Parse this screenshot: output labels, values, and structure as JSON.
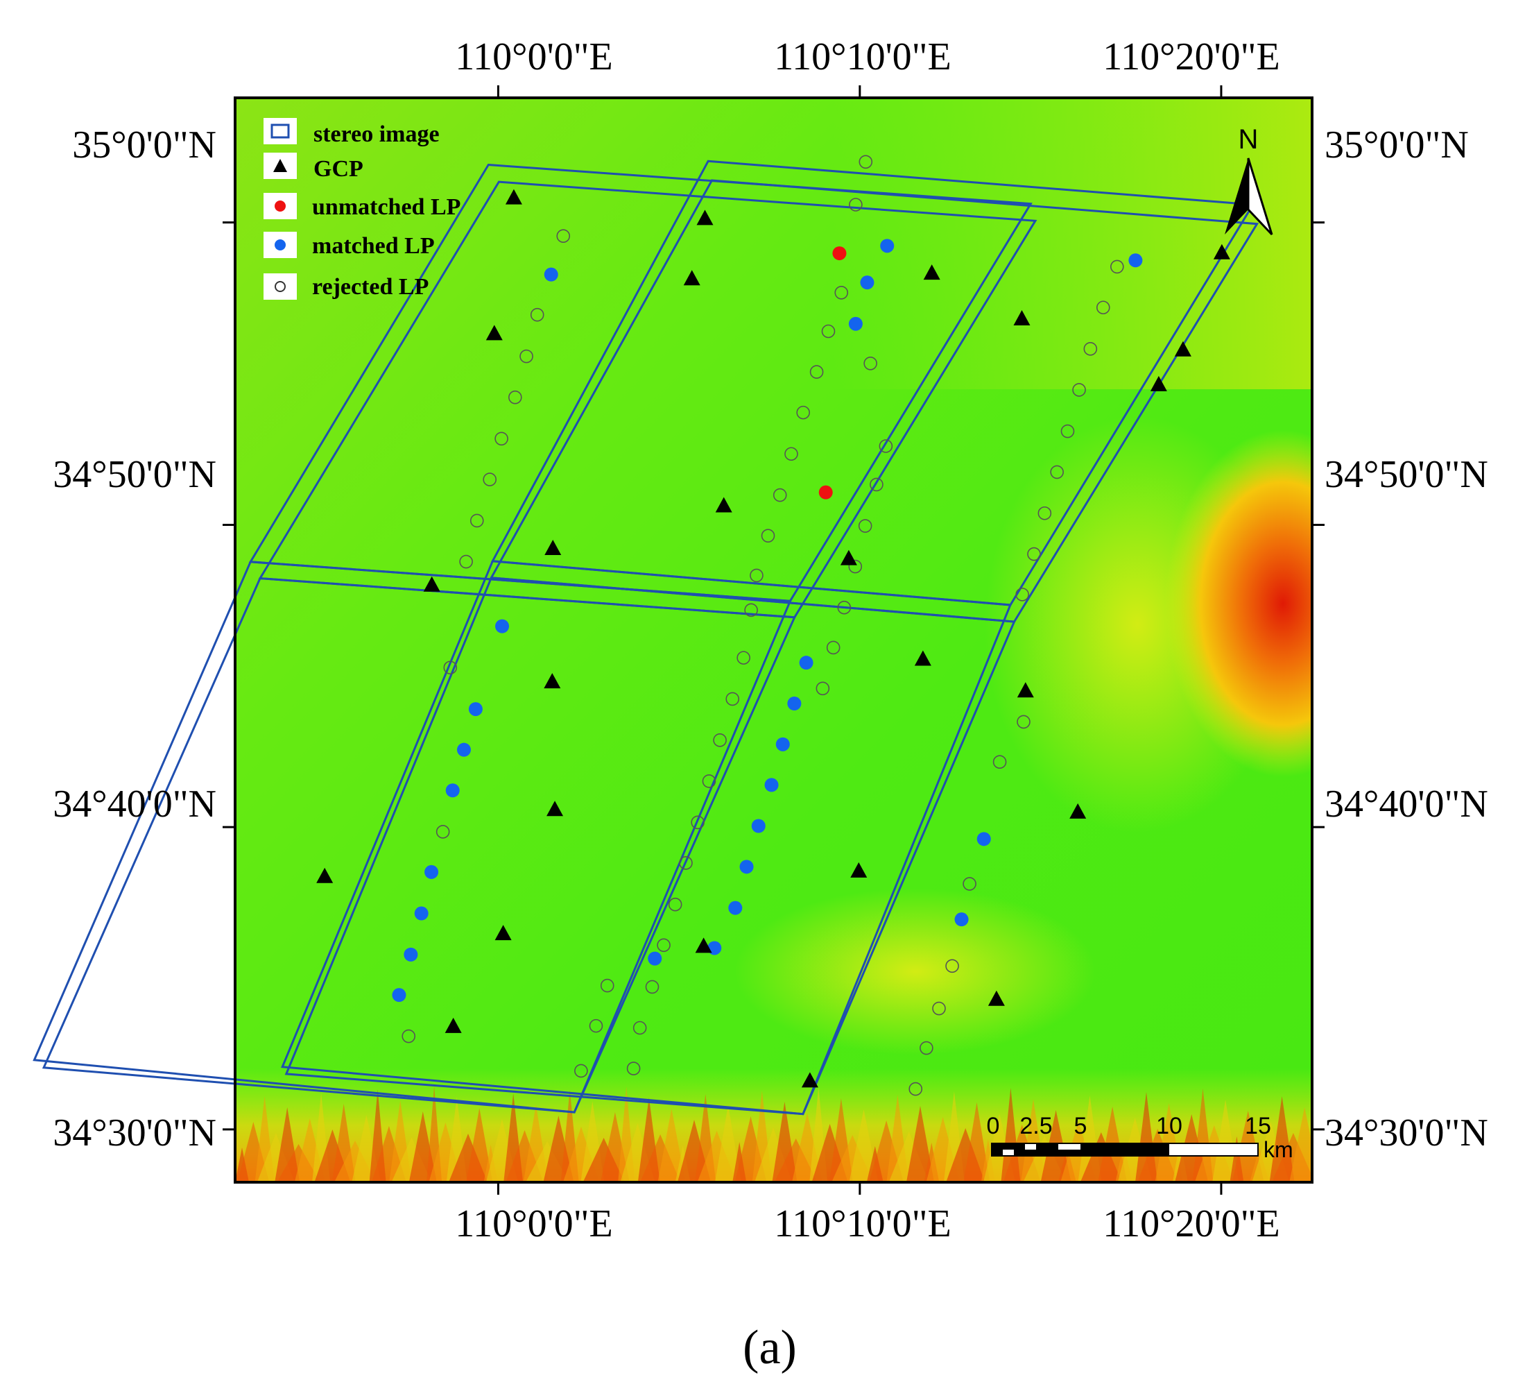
{
  "map": {
    "extent": {
      "lon_min": 109.8787,
      "lon_max": 110.3752,
      "lat_min": 34.4709,
      "lat_max": 35.0687
    },
    "top_lon_labels": [
      "110°0'0\"E",
      "110°10'0\"E",
      "110°20'0\"E"
    ],
    "bottom_lon_labels": [
      "110°0'0\"E",
      "110°10'0\"E",
      "110°20'0\"E"
    ],
    "left_lat_labels": [
      "35°0'0\"N",
      "34°50'0\"N",
      "34°40'0\"N",
      "34°30'0\"N"
    ],
    "right_lat_labels": [
      "35°0'0\"N",
      "34°50'0\"N",
      "34°40'0\"N",
      "34°30'0\"N"
    ],
    "lon_ticks": [
      110.0,
      110.1667,
      110.3333
    ],
    "lat_ticks": [
      35.0,
      34.8333,
      34.6667,
      34.5
    ],
    "colors": {
      "stereo_image": "#1f4fb0",
      "gcp": "#000000",
      "unmatched_lp": "#ee1111",
      "matched_lp": "#1464ee",
      "rejected_lp": "#555555",
      "dem_low": "#44ee11",
      "dem_high": "#dd1100"
    }
  },
  "legend": {
    "items": [
      {
        "label": "stereo image",
        "symbol": "rect"
      },
      {
        "label": "GCP",
        "symbol": "triangle"
      },
      {
        "label": "unmatched LP",
        "symbol": "dot-red"
      },
      {
        "label": "matched LP",
        "symbol": "dot-blue"
      },
      {
        "label": "rejected LP",
        "symbol": "circle-open"
      }
    ]
  },
  "north_arrow": {
    "label": "N"
  },
  "scale_bar": {
    "ticks": [
      "0",
      "2.5",
      "5",
      "10",
      "15"
    ],
    "unit": "km"
  },
  "caption": "(a)",
  "features": {
    "stereo_images": [
      {
        "corners": [
          [
            109.9955,
            35.0318
          ],
          [
            110.2455,
            35.0103
          ],
          [
            110.1346,
            34.7913
          ],
          [
            109.8858,
            34.8129
          ]
        ]
      },
      {
        "corners": [
          [
            110.0003,
            35.0224
          ],
          [
            110.2476,
            35.0009
          ],
          [
            110.1366,
            34.7823
          ],
          [
            109.8902,
            34.8038
          ]
        ]
      },
      {
        "corners": [
          [
            109.8858,
            34.8129
          ],
          [
            110.1346,
            34.7913
          ],
          [
            110.0351,
            34.5095
          ],
          [
            109.7861,
            34.5383
          ]
        ]
      },
      {
        "corners": [
          [
            109.8902,
            34.8038
          ],
          [
            110.1366,
            34.7823
          ],
          [
            110.0351,
            34.5095
          ],
          [
            109.7905,
            34.5341
          ]
        ]
      },
      {
        "corners": [
          [
            110.0968,
            35.0338
          ],
          [
            110.3479,
            35.0098
          ],
          [
            110.2361,
            34.7891
          ],
          [
            109.9974,
            34.8133
          ]
        ]
      },
      {
        "corners": [
          [
            110.0985,
            35.0232
          ],
          [
            110.3498,
            34.9992
          ],
          [
            110.2379,
            34.7799
          ],
          [
            109.9968,
            34.8041
          ]
        ]
      },
      {
        "corners": [
          [
            109.9974,
            34.8133
          ],
          [
            110.2361,
            34.7891
          ],
          [
            110.1405,
            34.5085
          ],
          [
            109.9005,
            34.5345
          ]
        ]
      },
      {
        "corners": [
          [
            109.9968,
            34.8041
          ],
          [
            110.2379,
            34.7799
          ],
          [
            110.1405,
            34.5085
          ],
          [
            109.9023,
            34.5306
          ]
        ]
      }
    ],
    "gcp": [
      [
        110.0072,
        35.0134
      ],
      [
        109.9982,
        34.9385
      ],
      [
        110.0252,
        34.8201
      ],
      [
        109.9694,
        34.7999
      ],
      [
        110.0249,
        34.7466
      ],
      [
        110.0261,
        34.6762
      ],
      [
        109.92,
        34.6393
      ],
      [
        110.0023,
        34.6078
      ],
      [
        109.9793,
        34.5566
      ],
      [
        110.0953,
        35.002
      ],
      [
        110.0893,
        34.9688
      ],
      [
        110.104,
        34.8436
      ],
      [
        110.1616,
        34.8145
      ],
      [
        110.1958,
        34.7591
      ],
      [
        110.1999,
        34.9719
      ],
      [
        110.2414,
        34.9467
      ],
      [
        110.3157,
        34.9296
      ],
      [
        110.3336,
        34.9831
      ],
      [
        110.3045,
        34.9104
      ],
      [
        110.2431,
        34.7416
      ],
      [
        110.2672,
        34.6748
      ],
      [
        110.1662,
        34.6423
      ],
      [
        110.1437,
        34.5266
      ],
      [
        110.0947,
        34.6008
      ],
      [
        110.2297,
        34.5716
      ]
    ],
    "matched_lp": [
      [
        110.0244,
        34.9713
      ],
      [
        110.0018,
        34.7774
      ],
      [
        109.9896,
        34.7317
      ],
      [
        109.9842,
        34.7093
      ],
      [
        109.979,
        34.6869
      ],
      [
        109.9692,
        34.6419
      ],
      [
        109.9646,
        34.6191
      ],
      [
        109.9597,
        34.5964
      ],
      [
        109.9543,
        34.5741
      ],
      [
        110.1793,
        34.9871
      ],
      [
        110.1701,
        34.9669
      ],
      [
        110.1648,
        34.9441
      ],
      [
        110.142,
        34.7573
      ],
      [
        110.1365,
        34.7348
      ],
      [
        110.1312,
        34.7123
      ],
      [
        110.126,
        34.6899
      ],
      [
        110.12,
        34.6673
      ],
      [
        110.1145,
        34.6448
      ],
      [
        110.1093,
        34.6221
      ],
      [
        110.0997,
        34.6
      ],
      [
        110.0722,
        34.5942
      ],
      [
        110.2938,
        34.9791
      ],
      [
        110.2239,
        34.6601
      ],
      [
        110.2136,
        34.6158
      ]
    ],
    "unmatched_lp": [
      [
        110.1573,
        34.983
      ],
      [
        110.151,
        34.8512
      ]
    ],
    "rejected_lp": [
      [
        110.03,
        34.9925
      ],
      [
        110.018,
        34.9491
      ],
      [
        110.013,
        34.9262
      ],
      [
        110.0078,
        34.9036
      ],
      [
        110.0015,
        34.8808
      ],
      [
        109.9961,
        34.8583
      ],
      [
        109.9902,
        34.8356
      ],
      [
        109.9852,
        34.813
      ],
      [
        109.9779,
        34.7546
      ],
      [
        109.9745,
        34.6641
      ],
      [
        109.9587,
        34.5514
      ],
      [
        110.1694,
        35.0334
      ],
      [
        110.1648,
        35.0098
      ],
      [
        110.1582,
        34.9613
      ],
      [
        110.1522,
        34.94
      ],
      [
        110.1468,
        34.9176
      ],
      [
        110.1406,
        34.8952
      ],
      [
        110.1351,
        34.8724
      ],
      [
        110.1299,
        34.8497
      ],
      [
        110.1244,
        34.8273
      ],
      [
        110.1191,
        34.8054
      ],
      [
        110.1166,
        34.7863
      ],
      [
        110.1131,
        34.76
      ],
      [
        110.108,
        34.7373
      ],
      [
        110.1022,
        34.7146
      ],
      [
        110.0972,
        34.692
      ],
      [
        110.092,
        34.6693
      ],
      [
        110.0865,
        34.6469
      ],
      [
        110.0816,
        34.624
      ],
      [
        110.0763,
        34.6016
      ],
      [
        110.071,
        34.5786
      ],
      [
        110.0653,
        34.556
      ],
      [
        110.0503,
        34.5793
      ],
      [
        110.0451,
        34.5571
      ],
      [
        110.0382,
        34.5323
      ],
      [
        110.0624,
        34.5336
      ],
      [
        110.1716,
        34.9223
      ],
      [
        110.1787,
        34.8767
      ],
      [
        110.1744,
        34.8555
      ],
      [
        110.1692,
        34.8327
      ],
      [
        110.1646,
        34.8103
      ],
      [
        110.1595,
        34.7877
      ],
      [
        110.1545,
        34.7656
      ],
      [
        110.1496,
        34.7431
      ],
      [
        110.2789,
        34.9531
      ],
      [
        110.273,
        34.9303
      ],
      [
        110.2678,
        34.9077
      ],
      [
        110.2625,
        34.8849
      ],
      [
        110.2576,
        34.8624
      ],
      [
        110.2519,
        34.8397
      ],
      [
        110.247,
        34.8172
      ],
      [
        110.2416,
        34.7949
      ],
      [
        110.2853,
        34.9756
      ],
      [
        110.2422,
        34.7247
      ],
      [
        110.2312,
        34.7026
      ],
      [
        110.2173,
        34.6354
      ],
      [
        110.2093,
        34.5901
      ],
      [
        110.2032,
        34.5667
      ],
      [
        110.1974,
        34.5449
      ],
      [
        110.1924,
        34.5223
      ]
    ]
  }
}
